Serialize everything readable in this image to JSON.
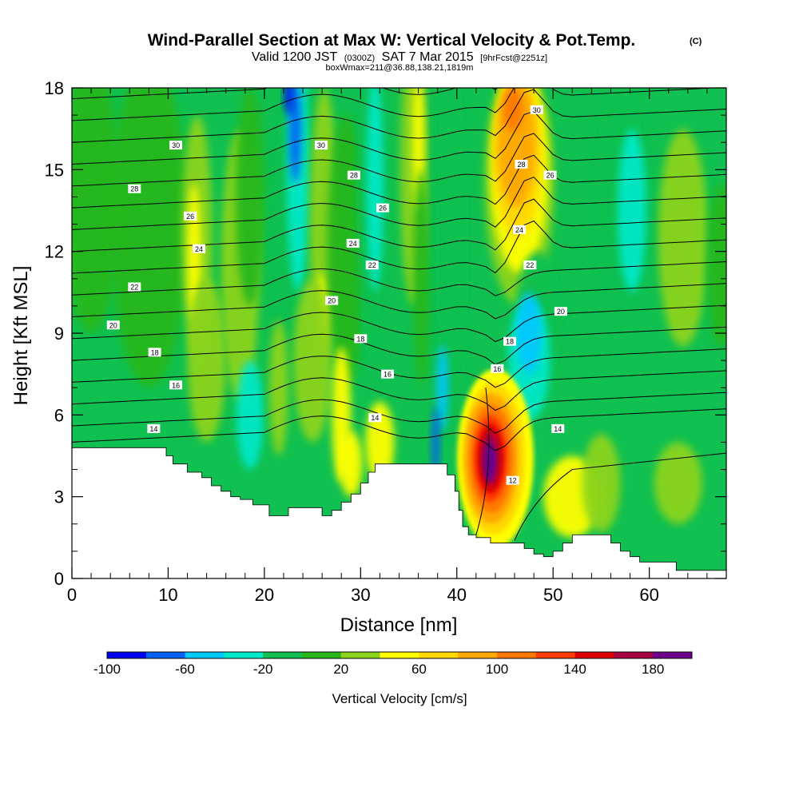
{
  "title": "Wind-Parallel Section at Max W: Vertical Velocity & Pot.Temp.",
  "title_mark": "(C)",
  "subtitle": {
    "part1": "Valid 1200 JST",
    "part2": "(0300Z)",
    "part3": "SAT 7 Mar 2015",
    "part4": "[9hrFcst@2251z]"
  },
  "subtitle2": "boxWmax=211@36.88,138.21,1819m",
  "chart_data": {
    "type": "heatmap",
    "xlabel": "Distance [nm]",
    "ylabel": "Height [Kft MSL]",
    "xlim": [
      0,
      68
    ],
    "ylim": [
      0,
      18
    ],
    "x_ticks": [
      "0",
      "10",
      "20",
      "30",
      "40",
      "50",
      "60"
    ],
    "y_ticks": [
      "0",
      "3",
      "6",
      "9",
      "12",
      "15",
      "18"
    ],
    "colorbar": {
      "label": "Vertical Velocity [cm/s]",
      "range": [
        -100,
        200
      ],
      "tick_labels": [
        "-100",
        "-60",
        "-20",
        "20",
        "60",
        "100",
        "140",
        "180"
      ],
      "colors": [
        "#0000ee",
        "#0060f8",
        "#00c8ff",
        "#00e8c8",
        "#10c050",
        "#28b81c",
        "#8cd41c",
        "#ffff00",
        "#ffd800",
        "#ffa800",
        "#ff7800",
        "#ff3c00",
        "#e00000",
        "#a80040",
        "#6c008c"
      ]
    },
    "terrain_kft": [
      [
        0,
        4.8
      ],
      [
        9.8,
        4.8
      ],
      [
        9.8,
        4.5
      ],
      [
        10.5,
        4.2
      ],
      [
        12,
        3.9
      ],
      [
        13.5,
        3.7
      ],
      [
        14.5,
        3.4
      ],
      [
        15.5,
        3.2
      ],
      [
        16.5,
        3.0
      ],
      [
        17.5,
        2.9
      ],
      [
        18.8,
        2.7
      ],
      [
        20.5,
        2.3
      ],
      [
        21.5,
        2.3
      ],
      [
        22.5,
        2.6
      ],
      [
        25,
        2.6
      ],
      [
        26,
        2.3
      ],
      [
        27,
        2.5
      ],
      [
        28,
        2.8
      ],
      [
        29,
        3.1
      ],
      [
        30,
        3.5
      ],
      [
        30.8,
        3.9
      ],
      [
        31.5,
        4.2
      ],
      [
        38.5,
        4.2
      ],
      [
        39,
        3.8
      ],
      [
        39.8,
        3.2
      ],
      [
        40.2,
        2.5
      ],
      [
        40.6,
        1.9
      ],
      [
        41.2,
        1.6
      ],
      [
        42,
        1.5
      ],
      [
        43.5,
        1.3
      ],
      [
        46,
        1.3
      ],
      [
        47,
        1.1
      ],
      [
        48,
        0.9
      ],
      [
        49,
        0.8
      ],
      [
        50,
        1.0
      ],
      [
        51,
        1.3
      ],
      [
        52,
        1.6
      ],
      [
        55,
        1.6
      ],
      [
        56,
        1.3
      ],
      [
        57,
        1.0
      ],
      [
        58,
        0.8
      ],
      [
        59,
        0.6
      ],
      [
        62,
        0.6
      ],
      [
        62.8,
        0.3
      ],
      [
        68,
        0.3
      ]
    ],
    "updraft_max": {
      "x": 43.5,
      "y": 4.4,
      "value": 211
    },
    "theta_contours": [
      {
        "level": "12",
        "x": 45.8,
        "y": 3.6
      },
      {
        "level": "14",
        "x": 8.5,
        "y": 5.5
      },
      {
        "level": "14",
        "x": 31.5,
        "y": 5.9
      },
      {
        "level": "14",
        "x": 50.5,
        "y": 5.5
      },
      {
        "level": "16",
        "x": 10.8,
        "y": 7.1
      },
      {
        "level": "16",
        "x": 32.8,
        "y": 7.5
      },
      {
        "level": "16",
        "x": 44.2,
        "y": 7.7
      },
      {
        "level": "18",
        "x": 8.6,
        "y": 8.3
      },
      {
        "level": "18",
        "x": 30.0,
        "y": 8.8
      },
      {
        "level": "18",
        "x": 45.5,
        "y": 8.7
      },
      {
        "level": "20",
        "x": 4.3,
        "y": 9.3
      },
      {
        "level": "20",
        "x": 27.0,
        "y": 10.2
      },
      {
        "level": "20",
        "x": 50.8,
        "y": 9.8
      },
      {
        "level": "22",
        "x": 6.5,
        "y": 10.7
      },
      {
        "level": "22",
        "x": 31.2,
        "y": 11.5
      },
      {
        "level": "22",
        "x": 47.6,
        "y": 11.5
      },
      {
        "level": "24",
        "x": 13.2,
        "y": 12.1
      },
      {
        "level": "24",
        "x": 29.2,
        "y": 12.3
      },
      {
        "level": "24",
        "x": 46.5,
        "y": 12.8
      },
      {
        "level": "26",
        "x": 12.3,
        "y": 13.3
      },
      {
        "level": "26",
        "x": 32.3,
        "y": 13.6
      },
      {
        "level": "26",
        "x": 49.7,
        "y": 14.8
      },
      {
        "level": "28",
        "x": 6.5,
        "y": 14.3
      },
      {
        "level": "28",
        "x": 29.3,
        "y": 14.8
      },
      {
        "level": "28",
        "x": 46.7,
        "y": 15.2
      },
      {
        "level": "30",
        "x": 10.8,
        "y": 15.9
      },
      {
        "level": "30",
        "x": 25.9,
        "y": 15.9
      },
      {
        "level": "30",
        "x": 48.3,
        "y": 17.2
      }
    ]
  }
}
